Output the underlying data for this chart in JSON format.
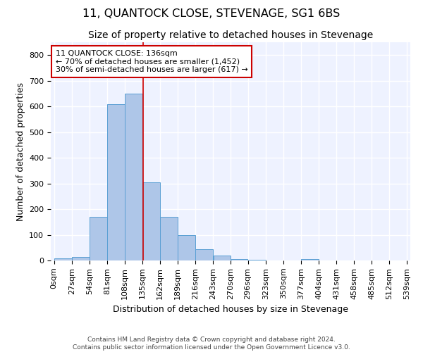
{
  "title": "11, QUANTOCK CLOSE, STEVENAGE, SG1 6BS",
  "subtitle": "Size of property relative to detached houses in Stevenage",
  "xlabel": "Distribution of detached houses by size in Stevenage",
  "ylabel": "Number of detached properties",
  "footer_line1": "Contains HM Land Registry data © Crown copyright and database right 2024.",
  "footer_line2": "Contains public sector information licensed under the Open Government Licence v3.0.",
  "bin_edges": [
    0,
    27,
    54,
    81,
    108,
    135,
    162,
    189,
    216,
    243,
    270,
    296,
    323,
    350,
    377,
    404,
    431,
    458,
    485,
    512,
    539
  ],
  "bar_heights": [
    8,
    15,
    170,
    610,
    650,
    305,
    170,
    98,
    45,
    18,
    5,
    2,
    0,
    0,
    6,
    0,
    0,
    0,
    0,
    0
  ],
  "bar_color": "#aec6e8",
  "bar_edge_color": "#5a9fd4",
  "property_line_x": 136,
  "property_line_color": "#cc0000",
  "annotation_box_color": "#cc0000",
  "annotation_text_line1": "11 QUANTOCK CLOSE: 136sqm",
  "annotation_text_line2": "← 70% of detached houses are smaller (1,452)",
  "annotation_text_line3": "30% of semi-detached houses are larger (617) →",
  "ylim": [
    0,
    850
  ],
  "yticks": [
    0,
    100,
    200,
    300,
    400,
    500,
    600,
    700,
    800
  ],
  "background_color": "#eef2ff",
  "grid_color": "#ffffff",
  "title_fontsize": 11.5,
  "subtitle_fontsize": 10,
  "axis_label_fontsize": 9,
  "tick_fontsize": 8,
  "footer_fontsize": 6.5
}
